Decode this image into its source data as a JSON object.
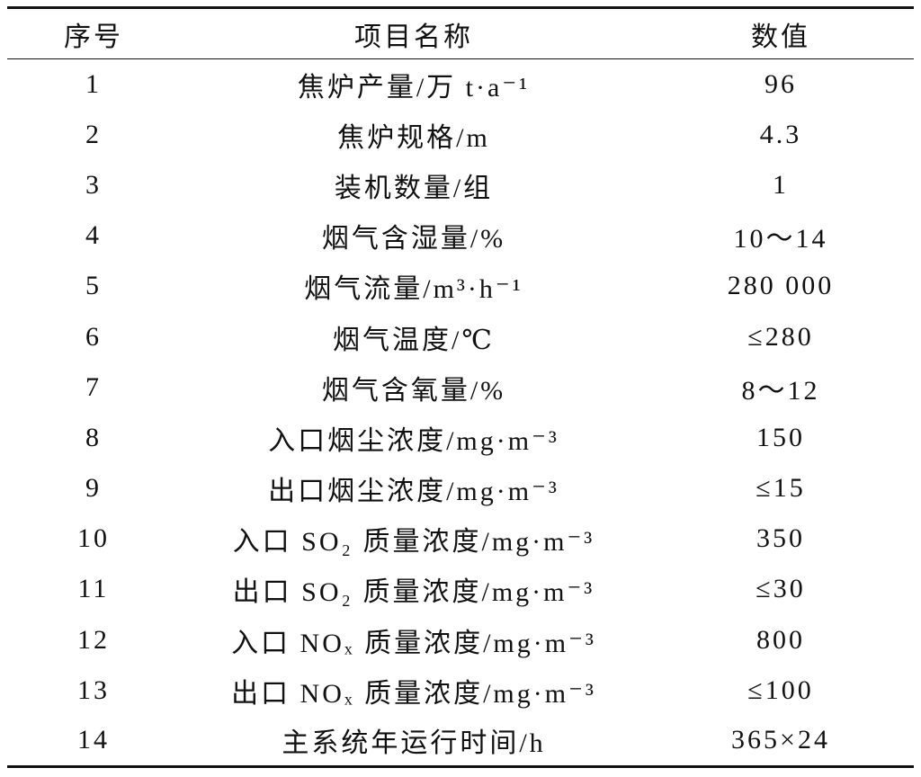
{
  "table": {
    "header": [
      "序号",
      "项目名称",
      "数值"
    ],
    "rows": [
      [
        "1",
        "焦炉产量/万 t·a⁻¹",
        "96"
      ],
      [
        "2",
        "焦炉规格/m",
        "4.3"
      ],
      [
        "3",
        "装机数量/组",
        "1"
      ],
      [
        "4",
        "烟气含湿量/%",
        "10～14"
      ],
      [
        "5",
        "烟气流量/m³·h⁻¹",
        "280 000"
      ],
      [
        "6",
        "烟气温度/℃",
        "≤280"
      ],
      [
        "7",
        "烟气含氧量/%",
        "8～12"
      ],
      [
        "8",
        "入口烟尘浓度/mg·m⁻³",
        "150"
      ],
      [
        "9",
        "出口烟尘浓度/mg·m⁻³",
        "≤15"
      ],
      [
        "10",
        "入口 SO₂ 质量浓度/mg·m⁻³",
        "350"
      ],
      [
        "11",
        "出口 SO₂ 质量浓度/mg·m⁻³",
        "≤30"
      ],
      [
        "12",
        "入口 NOₓ 质量浓度/mg·m⁻³",
        "800"
      ],
      [
        "13",
        "出口 NOₓ 质量浓度/mg·m⁻³",
        "≤100"
      ],
      [
        "14",
        "主系统年运行时间/h",
        "365×24"
      ]
    ]
  }
}
